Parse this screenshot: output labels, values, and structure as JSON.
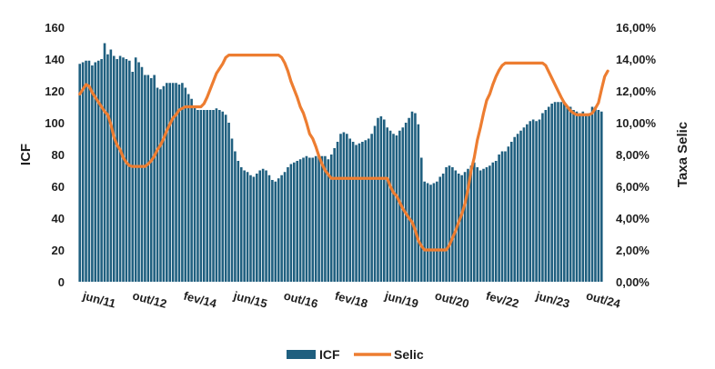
{
  "chart_data": {
    "type": "bar+line",
    "title": "",
    "x_ticks": [
      "jun/11",
      "out/12",
      "fev/14",
      "jun/15",
      "out/16",
      "fev/18",
      "jun/19",
      "out/20",
      "fev/22",
      "jun/23",
      "out/24"
    ],
    "y_left": {
      "label": "ICF",
      "ylim": [
        0,
        160
      ],
      "ticks": [
        "0",
        "20",
        "40",
        "60",
        "80",
        "100",
        "120",
        "140",
        "160"
      ]
    },
    "y_right": {
      "label": "Taxa Selic",
      "ylim": [
        0,
        16
      ],
      "ticks": [
        "0,00%",
        "2,00%",
        "4,00%",
        "6,00%",
        "8,00%",
        "10,00%",
        "12,00%",
        "14,00%",
        "16,00%"
      ]
    },
    "colors": {
      "icf": "#1f5f7f",
      "selic": "#ed7d31"
    },
    "legend": {
      "position": "bottom",
      "items": [
        {
          "name": "ICF",
          "kind": "bar"
        },
        {
          "name": "Selic",
          "kind": "line"
        }
      ]
    },
    "series": [
      {
        "name": "ICF",
        "kind": "bar",
        "axis": "left",
        "values": [
          137,
          138,
          139,
          139,
          136,
          138,
          139,
          140,
          150,
          143,
          146,
          142,
          140,
          142,
          141,
          140,
          139,
          132,
          141,
          138,
          135,
          130,
          130,
          128,
          130,
          122,
          121,
          123,
          125,
          125,
          125,
          125,
          124,
          125,
          122,
          118,
          115,
          110,
          108,
          108,
          108,
          108,
          108,
          108,
          109,
          108,
          107,
          105,
          100,
          90,
          82,
          76,
          72,
          70,
          69,
          67,
          66,
          68,
          70,
          71,
          70,
          67,
          64,
          63,
          65,
          67,
          69,
          72,
          74,
          75,
          76,
          77,
          78,
          79,
          78,
          78,
          79,
          79,
          79,
          79,
          77,
          80,
          84,
          88,
          93,
          94,
          93,
          90,
          88,
          86,
          87,
          88,
          89,
          90,
          93,
          98,
          103,
          104,
          102,
          97,
          95,
          93,
          92,
          95,
          97,
          100,
          103,
          107,
          106,
          99,
          78,
          63,
          62,
          61,
          62,
          63,
          66,
          68,
          72,
          73,
          72,
          70,
          68,
          67,
          69,
          71,
          73,
          75,
          72,
          70,
          71,
          72,
          73,
          75,
          76,
          80,
          82,
          82,
          85,
          88,
          91,
          93,
          95,
          97,
          99,
          101,
          102,
          101,
          102,
          106,
          108,
          110,
          112,
          113,
          113,
          113,
          112,
          110,
          110,
          108,
          107,
          106,
          107,
          105,
          106,
          110,
          110,
          108,
          107
        ]
      },
      {
        "name": "Selic",
        "kind": "line",
        "axis": "right",
        "values": [
          11.8,
          12.1,
          12.4,
          12.3,
          11.9,
          11.6,
          11.3,
          11.0,
          10.7,
          10.5,
          9.9,
          9.1,
          8.6,
          8.3,
          7.8,
          7.5,
          7.3,
          7.25,
          7.25,
          7.25,
          7.25,
          7.25,
          7.4,
          7.6,
          7.9,
          8.3,
          8.6,
          9.0,
          9.5,
          9.9,
          10.3,
          10.5,
          10.8,
          10.9,
          11.0,
          11.0,
          11.0,
          11.0,
          11.0,
          11.0,
          11.2,
          11.6,
          12.1,
          12.6,
          13.1,
          13.4,
          13.7,
          14.1,
          14.25,
          14.25,
          14.25,
          14.25,
          14.25,
          14.25,
          14.25,
          14.25,
          14.25,
          14.25,
          14.25,
          14.25,
          14.25,
          14.25,
          14.25,
          14.25,
          14.25,
          14.1,
          13.75,
          13.25,
          12.6,
          12.1,
          11.6,
          11.0,
          10.6,
          10.0,
          9.3,
          9.0,
          8.5,
          7.9,
          7.4,
          7.0,
          6.75,
          6.5,
          6.5,
          6.5,
          6.5,
          6.5,
          6.5,
          6.5,
          6.5,
          6.5,
          6.5,
          6.5,
          6.5,
          6.5,
          6.5,
          6.5,
          6.5,
          6.5,
          6.5,
          6.5,
          6.0,
          5.6,
          5.4,
          5.0,
          4.6,
          4.3,
          4.0,
          3.75,
          3.25,
          2.6,
          2.25,
          2.0,
          2.0,
          2.0,
          2.0,
          2.0,
          2.0,
          2.0,
          2.0,
          2.3,
          2.75,
          3.2,
          3.75,
          4.25,
          4.9,
          5.8,
          7.0,
          7.8,
          8.9,
          9.7,
          10.6,
          11.4,
          11.8,
          12.4,
          12.9,
          13.3,
          13.6,
          13.75,
          13.75,
          13.75,
          13.75,
          13.75,
          13.75,
          13.75,
          13.75,
          13.75,
          13.75,
          13.75,
          13.75,
          13.75,
          13.6,
          13.2,
          12.8,
          12.4,
          12.0,
          11.6,
          11.25,
          11.0,
          10.75,
          10.6,
          10.5,
          10.5,
          10.5,
          10.5,
          10.5,
          10.6,
          10.9,
          11.25,
          12.1,
          12.9,
          13.25
        ]
      }
    ]
  }
}
